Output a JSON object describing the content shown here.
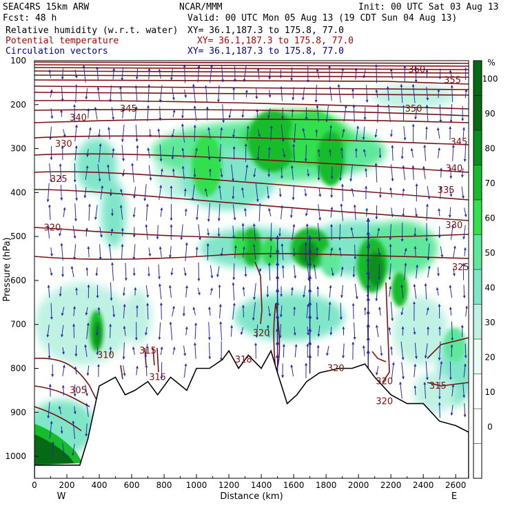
{
  "header": {
    "model": "SEAC4RS 15km ARW",
    "org": "NCAR/MMM",
    "init": "Init: 00 UTC Sat 03 Aug 13",
    "fcst": "Fcst:   48 h",
    "valid": "Valid: 00 UTC Mon 05 Aug 13 (19 CDT Sun 04 Aug 13)",
    "fields": [
      {
        "name": "Relative humidity (w.r.t. water)",
        "xy": "XY=  36.1,187.3 to 175.8, 77.0",
        "color": "#000000"
      },
      {
        "name": "Potential temperature",
        "xy": "XY=  36.1,187.3 to 175.8, 77.0",
        "color": "#b00000"
      },
      {
        "name": "Circulation vectors",
        "xy": "XY=  36.1,187.3 to 175.8, 77.0",
        "color": "#00008b"
      }
    ]
  },
  "chart_data": {
    "type": "heatmap",
    "title": "",
    "xlabel": "Distance (km)",
    "ylabel": "Pressure (hPa)",
    "xlim": [
      0,
      2680
    ],
    "ylim": [
      100,
      1050
    ],
    "y_inverted": true,
    "x_ticks": [
      0,
      200,
      400,
      600,
      800,
      1000,
      1200,
      1400,
      1600,
      1800,
      2000,
      2200,
      2400,
      2600
    ],
    "x_tick_labels": [
      "0",
      "200",
      "400",
      "600",
      "800",
      "1000",
      "1200",
      "1400",
      "1600",
      "1800",
      "2000",
      "2200",
      "2400",
      "2600"
    ],
    "y_ticks": [
      100,
      200,
      300,
      400,
      500,
      600,
      700,
      800,
      900,
      1000
    ],
    "y_tick_labels": [
      "100",
      "200",
      "300",
      "400",
      "500",
      "600",
      "700",
      "800",
      "900",
      "1000"
    ],
    "x_end_labels": {
      "left": "W",
      "right": "E"
    },
    "colorbar": {
      "unit": "%",
      "levels": [
        0,
        10,
        20,
        30,
        40,
        50,
        60,
        70,
        80,
        90,
        100
      ],
      "labels": [
        "0",
        "10",
        "20",
        "30",
        "40",
        "50",
        "60",
        "70",
        "80",
        "90",
        "100"
      ],
      "colors": [
        "#ffffff",
        "#ffffff",
        "#ffffff",
        "#e8fbf4",
        "#bff2e2",
        "#7fe6c8",
        "#5fe89a",
        "#33e04e",
        "#16bc2c",
        "#0a8f1e",
        "#066a14"
      ]
    },
    "theta_contours": [
      {
        "label": "305",
        "x": 270,
        "p": 850
      },
      {
        "label": "310",
        "x": 440,
        "p": 770
      },
      {
        "label": "315",
        "x": 700,
        "p": 760
      },
      {
        "label": "315",
        "x": 760,
        "p": 820
      },
      {
        "label": "318",
        "x": 1290,
        "p": 780
      },
      {
        "label": "320",
        "x": 1400,
        "p": 720
      },
      {
        "label": "320",
        "x": 1860,
        "p": 800
      },
      {
        "label": "320",
        "x": 2160,
        "p": 830
      },
      {
        "label": "320",
        "x": 2160,
        "p": 875
      },
      {
        "label": "315",
        "x": 2490,
        "p": 840
      },
      {
        "label": "320",
        "x": 110,
        "p": 480
      },
      {
        "label": "325",
        "x": 150,
        "p": 370
      },
      {
        "label": "325",
        "x": 2630,
        "p": 570
      },
      {
        "label": "330",
        "x": 180,
        "p": 290
      },
      {
        "label": "330",
        "x": 2590,
        "p": 475
      },
      {
        "label": "335",
        "x": 2540,
        "p": 395
      },
      {
        "label": "340",
        "x": 270,
        "p": 230
      },
      {
        "label": "340",
        "x": 2590,
        "p": 345
      },
      {
        "label": "345",
        "x": 580,
        "p": 210
      },
      {
        "label": "345",
        "x": 2620,
        "p": 285
      },
      {
        "label": "350",
        "x": 2340,
        "p": 210
      },
      {
        "label": "355",
        "x": 2580,
        "p": 145
      },
      {
        "label": "360",
        "x": 2360,
        "p": 120
      }
    ],
    "terrain_pressure": [
      [
        0,
        1020
      ],
      [
        280,
        1020
      ],
      [
        330,
        960
      ],
      [
        400,
        840
      ],
      [
        450,
        830
      ],
      [
        500,
        820
      ],
      [
        560,
        860
      ],
      [
        620,
        850
      ],
      [
        700,
        830
      ],
      [
        760,
        860
      ],
      [
        840,
        820
      ],
      [
        940,
        850
      ],
      [
        1000,
        800
      ],
      [
        1080,
        800
      ],
      [
        1160,
        780
      ],
      [
        1200,
        760
      ],
      [
        1260,
        800
      ],
      [
        1320,
        770
      ],
      [
        1400,
        800
      ],
      [
        1460,
        760
      ],
      [
        1500,
        810
      ],
      [
        1560,
        880
      ],
      [
        1620,
        860
      ],
      [
        1680,
        830
      ],
      [
        1760,
        810
      ],
      [
        1880,
        800
      ],
      [
        1960,
        800
      ],
      [
        2040,
        790
      ],
      [
        2100,
        820
      ],
      [
        2200,
        860
      ],
      [
        2300,
        880
      ],
      [
        2400,
        880
      ],
      [
        2500,
        920
      ],
      [
        2600,
        930
      ],
      [
        2680,
        945
      ]
    ],
    "humidity_cores": [
      {
        "x": 1700,
        "p": 540,
        "rh": 100
      },
      {
        "x": 2060,
        "p": 560,
        "rh": 100
      },
      {
        "x": 1380,
        "p": 540,
        "rh": 90
      },
      {
        "x": 400,
        "p": 720,
        "rh": 100
      },
      {
        "x": 100,
        "p": 960,
        "rh": 100
      }
    ]
  }
}
